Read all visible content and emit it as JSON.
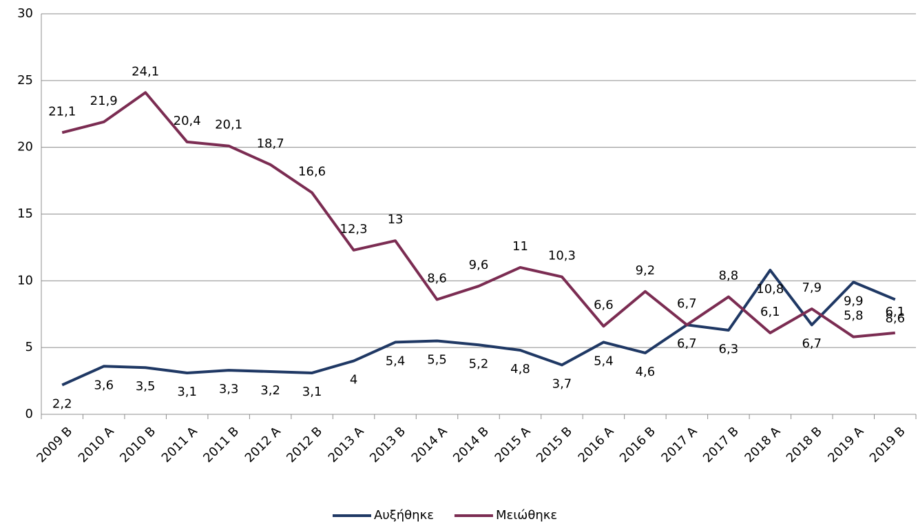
{
  "chart_data": {
    "type": "line",
    "categories": [
      "2009 B",
      "2010 A",
      "2010 B",
      "2011 A",
      "2011 B",
      "2012 A",
      "2012 B",
      "2013 A",
      "2013 B",
      "2014 A",
      "2014 B",
      "2015 A",
      "2015 B",
      "2016 A",
      "2016 B",
      "2017 A",
      "2017 B",
      "2018 A",
      "2018 B",
      "2019 A",
      "2019 B"
    ],
    "series": [
      {
        "name": "Αυξήθηκε",
        "color": "#1f3864",
        "values": [
          2.2,
          3.6,
          3.5,
          3.1,
          3.3,
          3.2,
          3.1,
          4,
          5.4,
          5.5,
          5.2,
          4.8,
          3.7,
          5.4,
          4.6,
          6.7,
          6.3,
          10.8,
          6.7,
          9.9,
          8.6
        ],
        "value_labels": [
          "2,2",
          "3,6",
          "3,5",
          "3,1",
          "3,3",
          "3,2",
          "3,1",
          "4",
          "5,4",
          "5,5",
          "5,2",
          "4,8",
          "3,7",
          "5,4",
          "4,6",
          "6,7",
          "6,3",
          "10,8",
          "6,7",
          "9,9",
          "8,6"
        ]
      },
      {
        "name": "Μειώθηκε",
        "color": "#7b2c52",
        "values": [
          21.1,
          21.9,
          24.1,
          20.4,
          20.1,
          18.7,
          16.6,
          12.3,
          13,
          8.6,
          9.6,
          11,
          10.3,
          6.6,
          9.2,
          6.7,
          8.8,
          6.1,
          7.9,
          5.8,
          6.1
        ],
        "value_labels": [
          "21,1",
          "21,9",
          "24,1",
          "20,4",
          "20,1",
          "18,7",
          "16,6",
          "12,3",
          "13",
          "8,6",
          "9,6",
          "11",
          "10,3",
          "6,6",
          "9,2",
          "6,7",
          "8,8",
          "6,1",
          "7,9",
          "5,8",
          "6,1"
        ]
      }
    ],
    "ylim": [
      0,
      30
    ],
    "yticks": [
      0,
      5,
      10,
      15,
      20,
      25,
      30
    ],
    "grid": true,
    "legend": "bottom"
  }
}
